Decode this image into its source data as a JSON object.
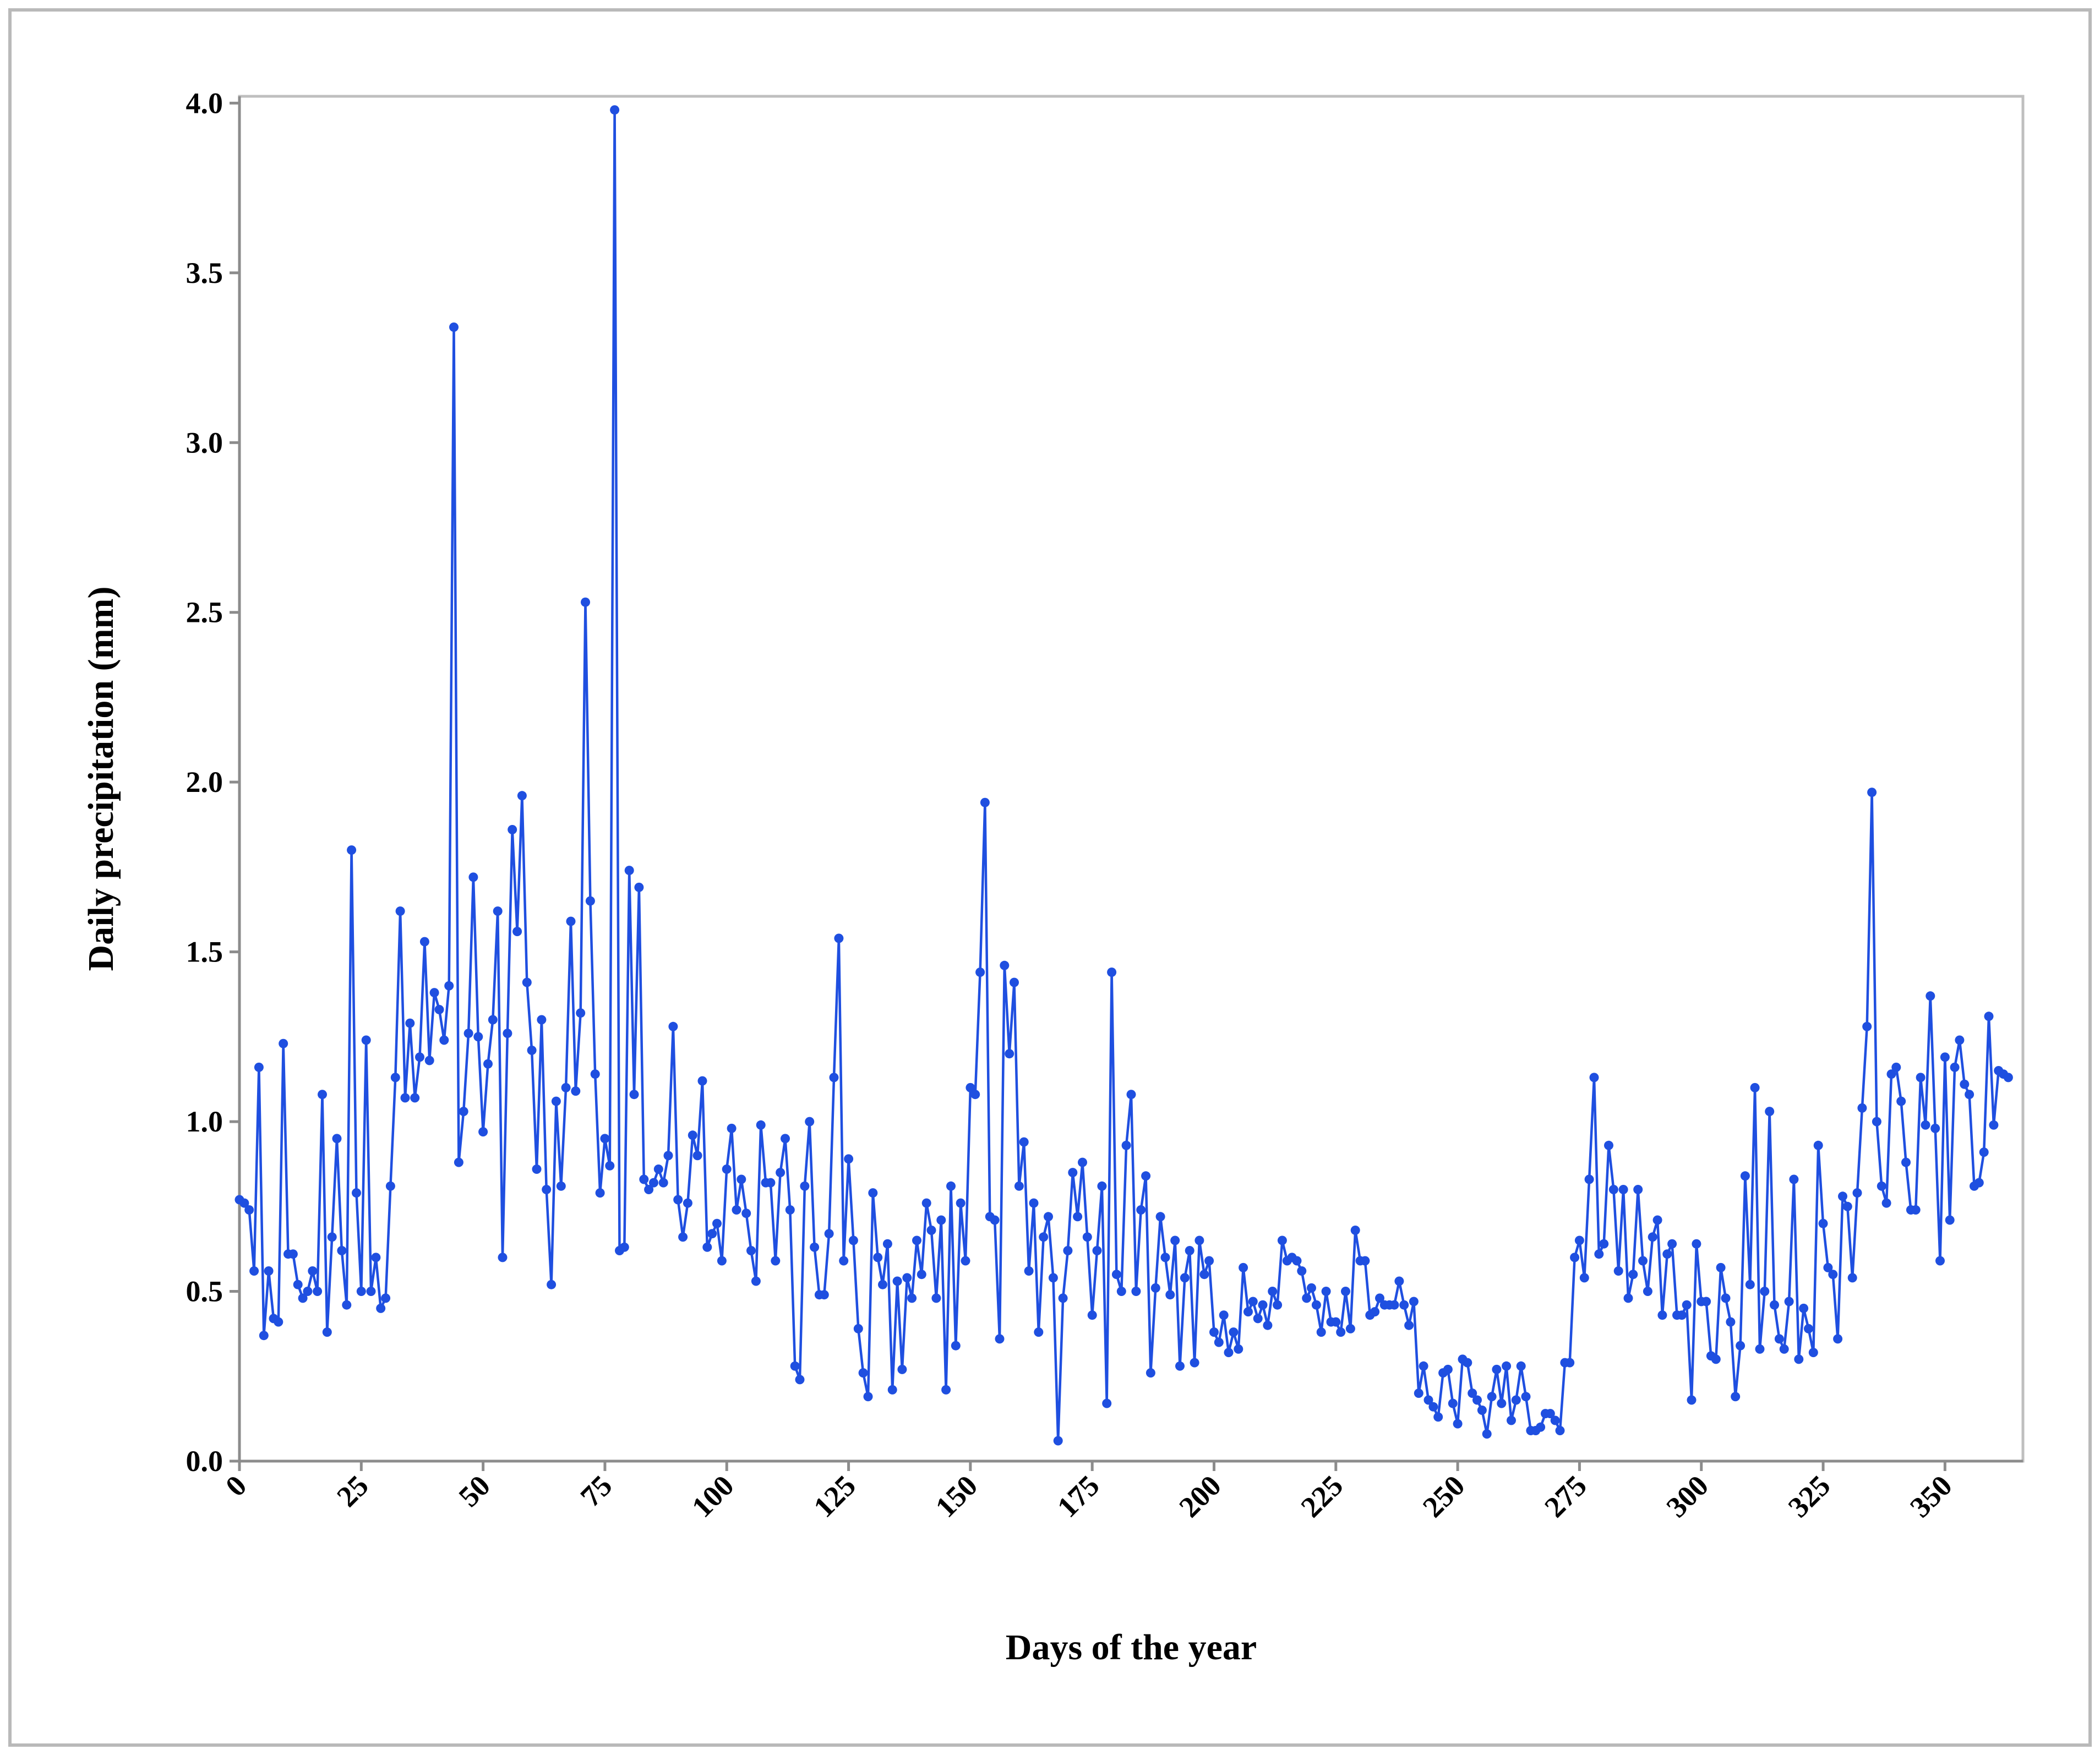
{
  "chart_data": {
    "type": "line",
    "title": "",
    "xlabel": "Days of the year",
    "ylabel": "Daily precipitation (mm)",
    "xlim": [
      0,
      365
    ],
    "ylim": [
      0,
      4.0
    ],
    "x_ticks": [
      0,
      25,
      50,
      75,
      100,
      125,
      150,
      175,
      200,
      225,
      250,
      275,
      300,
      325,
      350
    ],
    "x_tick_labels": [
      "0",
      "25",
      "50",
      "75",
      "100",
      "125",
      "150",
      "175",
      "200",
      "225",
      "250",
      "275",
      "300",
      "325",
      "350"
    ],
    "y_ticks": [
      0.0,
      0.5,
      1.0,
      1.5,
      2.0,
      2.5,
      3.0,
      3.5,
      4.0
    ],
    "y_tick_labels": [
      "0.0",
      "0.5",
      "1.0",
      "1.5",
      "2.0",
      "2.5",
      "3.0",
      "3.5",
      "4.0"
    ],
    "grid": false,
    "legend": "none",
    "series": [
      {
        "color": "#1f4fe0",
        "marker": "circle",
        "x_start": 0,
        "x_step": 1,
        "values": [
          0.77,
          0.76,
          0.74,
          0.56,
          1.16,
          0.37,
          0.56,
          0.42,
          0.41,
          1.23,
          0.61,
          0.61,
          0.52,
          0.48,
          0.5,
          0.56,
          0.5,
          1.08,
          0.38,
          0.66,
          0.95,
          0.62,
          0.46,
          1.8,
          0.79,
          0.5,
          1.24,
          0.5,
          0.6,
          0.45,
          0.48,
          0.81,
          1.13,
          1.62,
          1.07,
          1.29,
          1.07,
          1.19,
          1.53,
          1.18,
          1.38,
          1.33,
          1.24,
          1.4,
          3.34,
          0.88,
          1.03,
          1.26,
          1.72,
          1.25,
          0.97,
          1.17,
          1.3,
          1.62,
          0.6,
          1.26,
          1.86,
          1.56,
          1.96,
          1.41,
          1.21,
          0.86,
          1.3,
          0.8,
          0.52,
          1.06,
          0.81,
          1.1,
          1.59,
          1.09,
          1.32,
          2.53,
          1.65,
          1.14,
          0.79,
          0.95,
          0.87,
          3.98,
          0.62,
          0.63,
          1.74,
          1.08,
          1.69,
          0.83,
          0.8,
          0.82,
          0.86,
          0.82,
          0.9,
          1.28,
          0.77,
          0.66,
          0.76,
          0.96,
          0.9,
          1.12,
          0.63,
          0.67,
          0.7,
          0.59,
          0.86,
          0.98,
          0.74,
          0.83,
          0.73,
          0.62,
          0.53,
          0.99,
          0.82,
          0.82,
          0.59,
          0.85,
          0.95,
          0.74,
          0.28,
          0.24,
          0.81,
          1.0,
          0.63,
          0.49,
          0.49,
          0.67,
          1.13,
          1.54,
          0.59,
          0.89,
          0.65,
          0.39,
          0.26,
          0.19,
          0.79,
          0.6,
          0.52,
          0.64,
          0.21,
          0.53,
          0.27,
          0.54,
          0.48,
          0.65,
          0.55,
          0.76,
          0.68,
          0.48,
          0.71,
          0.21,
          0.81,
          0.34,
          0.76,
          0.59,
          1.1,
          1.08,
          1.44,
          1.94,
          0.72,
          0.71,
          0.36,
          1.46,
          1.2,
          1.41,
          0.81,
          0.94,
          0.56,
          0.76,
          0.38,
          0.66,
          0.72,
          0.54,
          0.06,
          0.48,
          0.62,
          0.85,
          0.72,
          0.88,
          0.66,
          0.43,
          0.62,
          0.81,
          0.17,
          1.44,
          0.55,
          0.5,
          0.93,
          1.08,
          0.5,
          0.74,
          0.84,
          0.26,
          0.51,
          0.72,
          0.6,
          0.49,
          0.65,
          0.28,
          0.54,
          0.62,
          0.29,
          0.65,
          0.55,
          0.59,
          0.38,
          0.35,
          0.43,
          0.32,
          0.38,
          0.33,
          0.57,
          0.44,
          0.47,
          0.42,
          0.46,
          0.4,
          0.5,
          0.46,
          0.65,
          0.59,
          0.6,
          0.59,
          0.56,
          0.48,
          0.51,
          0.46,
          0.38,
          0.5,
          0.41,
          0.41,
          0.38,
          0.5,
          0.39,
          0.68,
          0.59,
          0.59,
          0.43,
          0.44,
          0.48,
          0.46,
          0.46,
          0.46,
          0.53,
          0.46,
          0.4,
          0.47,
          0.2,
          0.28,
          0.18,
          0.16,
          0.13,
          0.26,
          0.27,
          0.17,
          0.11,
          0.3,
          0.29,
          0.2,
          0.18,
          0.15,
          0.08,
          0.19,
          0.27,
          0.17,
          0.28,
          0.12,
          0.18,
          0.28,
          0.19,
          0.09,
          0.09,
          0.1,
          0.14,
          0.14,
          0.12,
          0.09,
          0.29,
          0.29,
          0.6,
          0.65,
          0.54,
          0.83,
          1.13,
          0.61,
          0.64,
          0.93,
          0.8,
          0.56,
          0.8,
          0.48,
          0.55,
          0.8,
          0.59,
          0.5,
          0.66,
          0.71,
          0.43,
          0.61,
          0.64,
          0.43,
          0.43,
          0.46,
          0.18,
          0.64,
          0.47,
          0.47,
          0.31,
          0.3,
          0.57,
          0.48,
          0.41,
          0.19,
          0.34,
          0.84,
          0.52,
          1.1,
          0.33,
          0.5,
          1.03,
          0.46,
          0.36,
          0.33,
          0.47,
          0.83,
          0.3,
          0.45,
          0.39,
          0.32,
          0.93,
          0.7,
          0.57,
          0.55,
          0.36,
          0.78,
          0.75,
          0.54,
          0.79,
          1.04,
          1.28,
          1.97,
          1.0,
          0.81,
          0.76,
          1.14,
          1.16,
          1.06,
          0.88,
          0.74,
          0.74,
          1.13,
          0.99,
          1.37,
          0.98,
          0.59,
          1.19,
          0.71,
          1.16,
          1.24,
          1.11,
          1.08,
          0.81,
          0.82,
          0.91,
          1.31,
          0.99,
          1.15,
          1.14,
          1.13
        ]
      }
    ]
  }
}
